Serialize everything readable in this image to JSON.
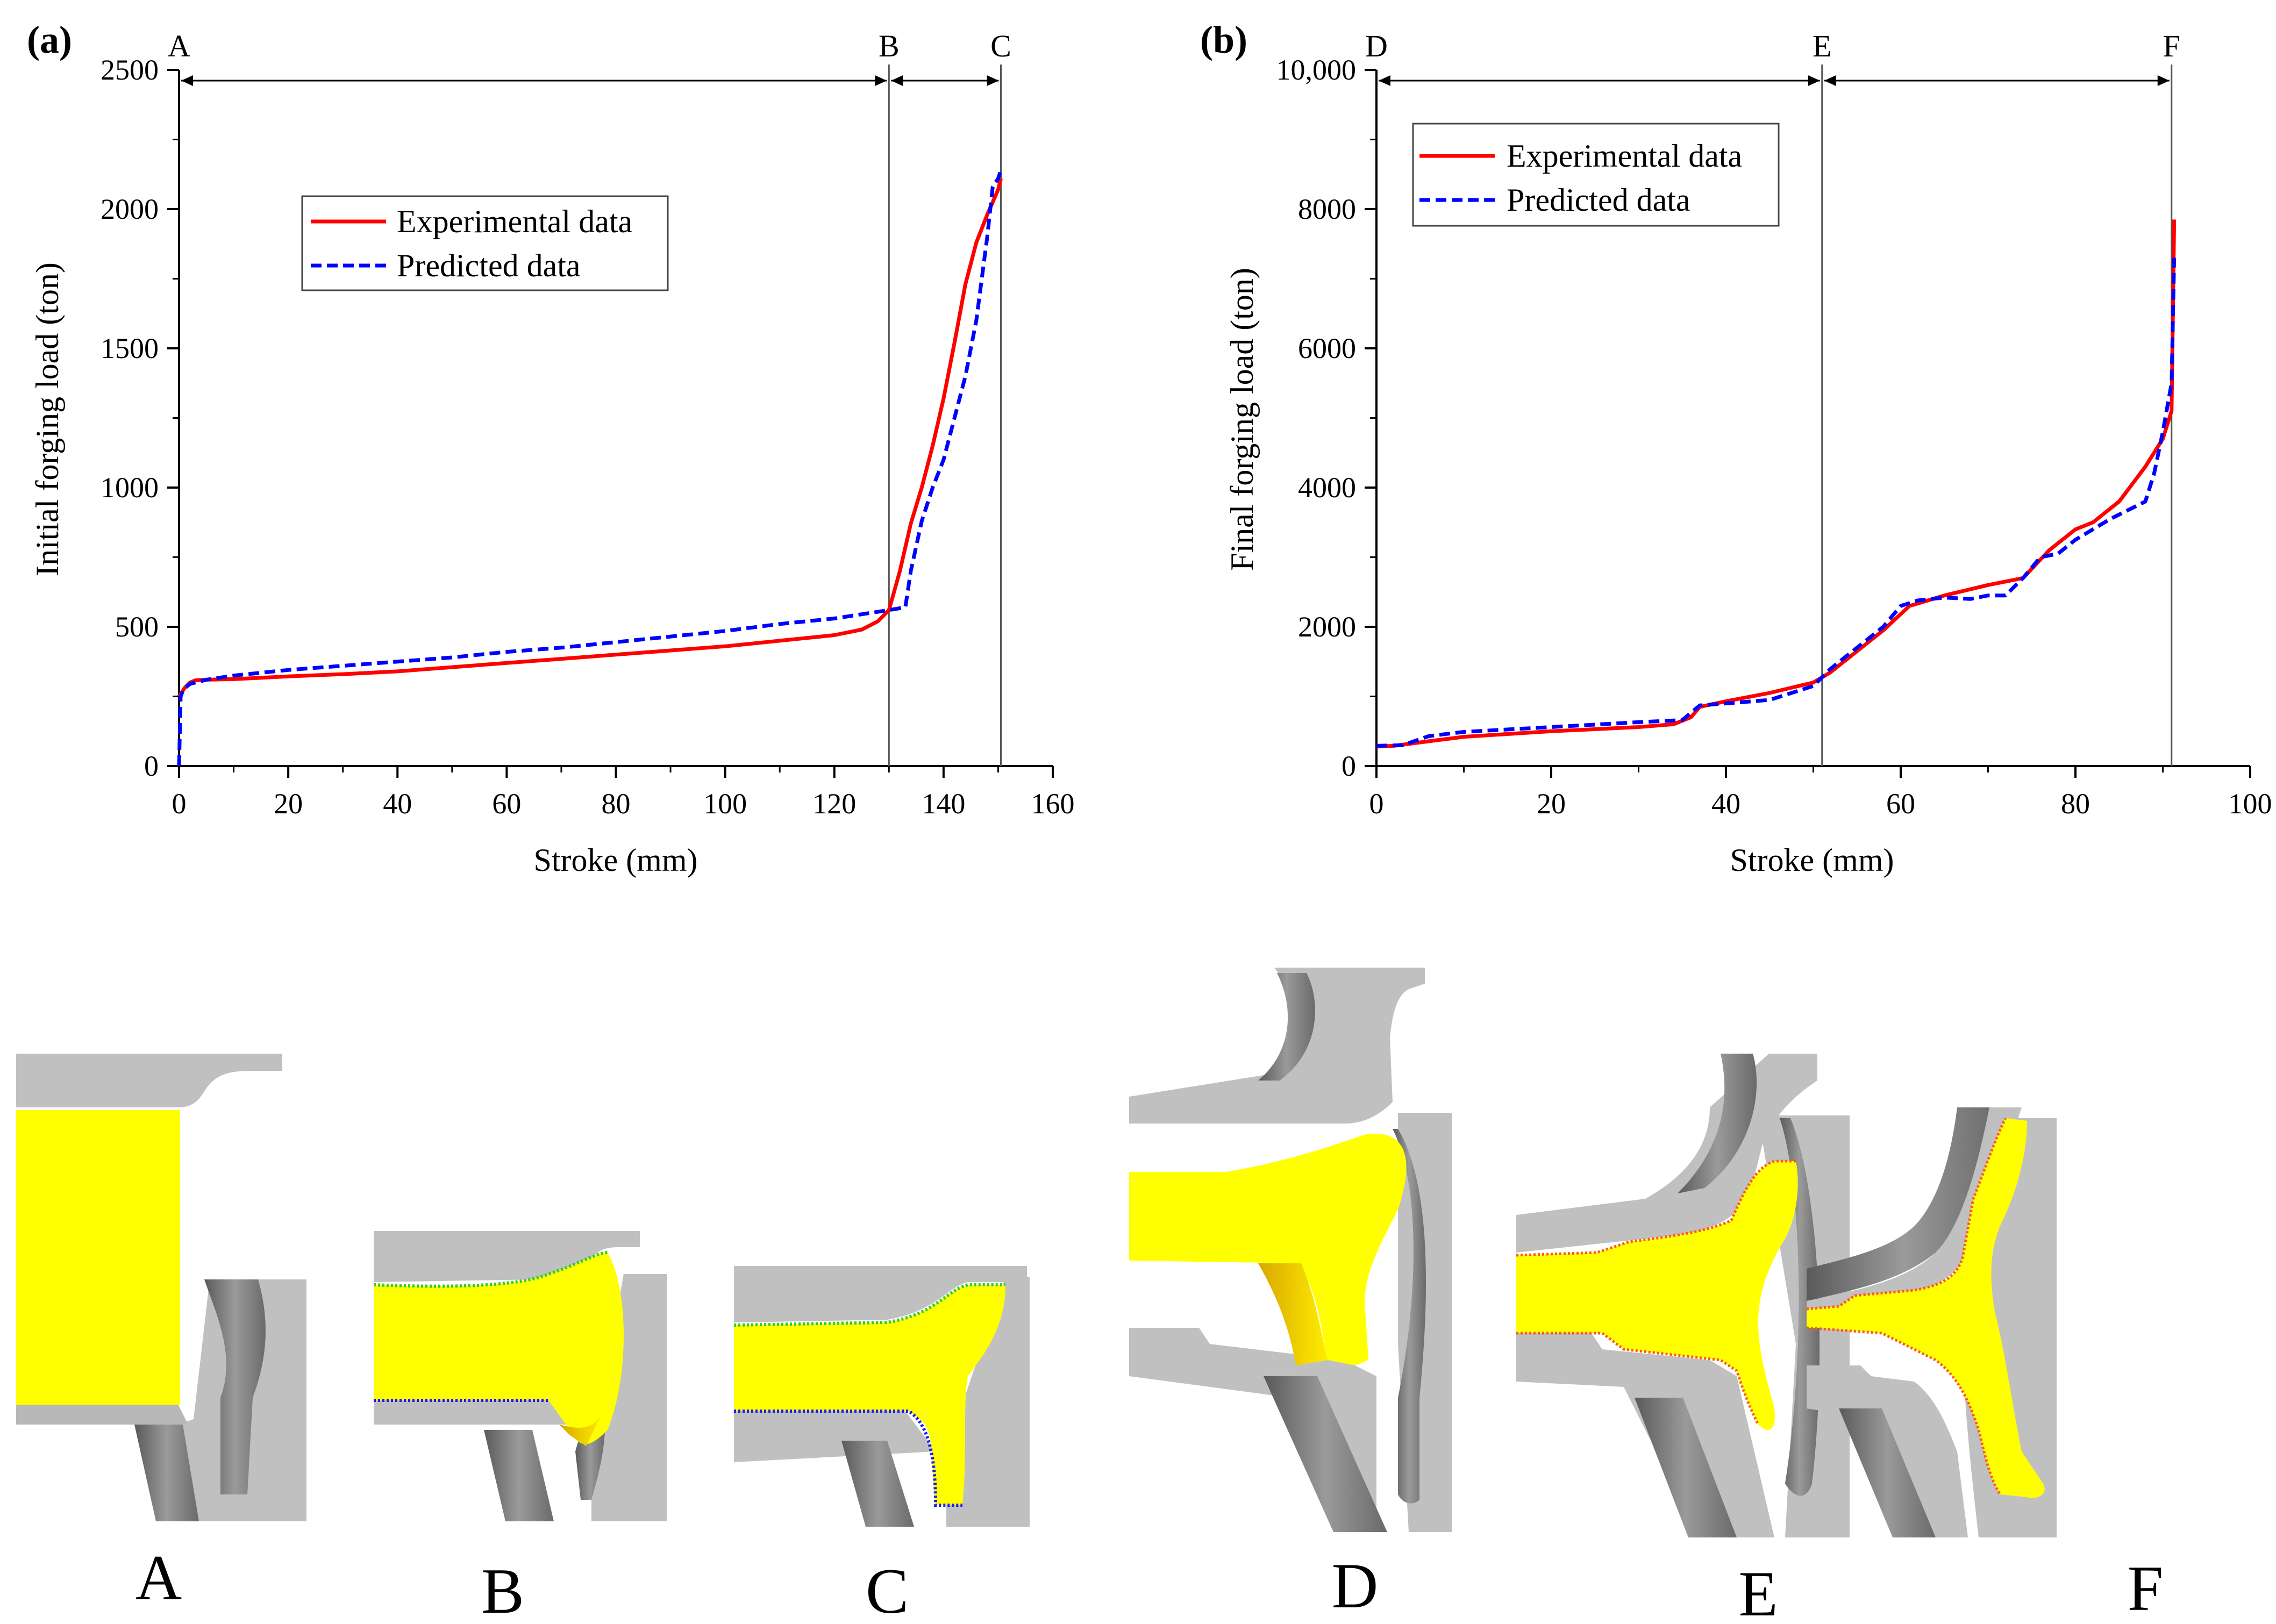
{
  "chart_data": [
    {
      "type": "line",
      "panel_label": "(a)",
      "xlabel": "Stroke (mm)",
      "ylabel": "Initial forging load (ton)",
      "xlim": [
        0,
        160
      ],
      "ylim": [
        0,
        2500
      ],
      "xticks": [
        0,
        20,
        40,
        60,
        80,
        100,
        120,
        140,
        160
      ],
      "yticks": [
        0,
        500,
        1000,
        1500,
        2000,
        2500
      ],
      "xtick_labels": [
        "0",
        "20",
        "40",
        "60",
        "80",
        "100",
        "120",
        "140",
        "160"
      ],
      "ytick_labels": [
        "0",
        "500",
        "1000",
        "1500",
        "2000",
        "2500"
      ],
      "stages": [
        {
          "label": "A",
          "x": 0
        },
        {
          "label": "B",
          "x": 130
        },
        {
          "label": "C",
          "x": 150.5
        }
      ],
      "legend": {
        "position": "upper-center-left",
        "items": [
          "Experimental data",
          "Predicted data"
        ]
      },
      "series": [
        {
          "name": "Experimental data",
          "color": "#ff0000",
          "style": "solid",
          "x": [
            0,
            1,
            2,
            3,
            5,
            10,
            20,
            30,
            40,
            50,
            60,
            70,
            80,
            90,
            100,
            110,
            120,
            125,
            128,
            130,
            132,
            134,
            136,
            138,
            140,
            142,
            144,
            146,
            148,
            150,
            150.5
          ],
          "y": [
            250,
            280,
            300,
            308,
            310,
            312,
            322,
            330,
            340,
            355,
            370,
            385,
            400,
            415,
            430,
            450,
            470,
            490,
            520,
            560,
            700,
            870,
            1000,
            1150,
            1320,
            1520,
            1730,
            1880,
            1980,
            2070,
            2110
          ]
        },
        {
          "name": "Predicted data",
          "color": "#0000ff",
          "style": "dashed",
          "x": [
            0,
            0.3,
            0.8,
            2,
            5,
            10,
            20,
            30,
            40,
            50,
            60,
            70,
            80,
            90,
            100,
            110,
            120,
            125,
            130,
            133,
            134,
            136,
            138,
            140,
            142,
            144,
            146,
            148,
            149,
            150,
            150.5
          ],
          "y": [
            0,
            250,
            275,
            295,
            310,
            325,
            345,
            360,
            375,
            390,
            410,
            425,
            445,
            465,
            485,
            510,
            530,
            545,
            560,
            570,
            700,
            880,
            1000,
            1100,
            1250,
            1400,
            1600,
            1900,
            2080,
            2110,
            2140
          ]
        }
      ]
    },
    {
      "type": "line",
      "panel_label": "(b)",
      "xlabel": "Stroke (mm)",
      "ylabel": "Final forging load (ton)",
      "xlim": [
        0,
        100
      ],
      "ylim": [
        0,
        10000
      ],
      "xticks": [
        0,
        20,
        40,
        60,
        80,
        100
      ],
      "yticks": [
        0,
        2000,
        4000,
        6000,
        8000,
        10000
      ],
      "xtick_labels": [
        "0",
        "20",
        "40",
        "60",
        "80",
        "100"
      ],
      "ytick_labels": [
        "0",
        "2000",
        "4000",
        "6000",
        "8000",
        "10,000"
      ],
      "stages": [
        {
          "label": "D",
          "x": 0
        },
        {
          "label": "E",
          "x": 51
        },
        {
          "label": "F",
          "x": 91
        }
      ],
      "legend": {
        "position": "top-left",
        "items": [
          "Experimental data",
          "Predicted data"
        ]
      },
      "series": [
        {
          "name": "Experimental data",
          "color": "#ff0000",
          "style": "solid",
          "x": [
            0,
            2,
            5,
            10,
            20,
            30,
            34,
            36,
            37,
            40,
            45,
            50,
            52,
            55,
            58,
            61,
            65,
            70,
            74,
            77,
            80,
            82,
            85,
            88,
            90,
            91,
            91.3
          ],
          "y": [
            280,
            290,
            340,
            420,
            500,
            560,
            600,
            700,
            850,
            930,
            1050,
            1200,
            1350,
            1650,
            1950,
            2300,
            2450,
            2600,
            2700,
            3100,
            3400,
            3500,
            3800,
            4300,
            4700,
            5100,
            7850
          ]
        },
        {
          "name": "Predicted data",
          "color": "#0000ff",
          "style": "dashed",
          "x": [
            0,
            3,
            6,
            10,
            20,
            30,
            35,
            37,
            40,
            45,
            50,
            52,
            55,
            58,
            60,
            62,
            65,
            68,
            70,
            72,
            74,
            76,
            78,
            80,
            84,
            88,
            89,
            90,
            91,
            91.3
          ],
          "y": [
            290,
            300,
            430,
            490,
            560,
            630,
            660,
            870,
            900,
            950,
            1150,
            1400,
            1700,
            2000,
            2300,
            2380,
            2420,
            2400,
            2450,
            2450,
            2700,
            3000,
            3050,
            3250,
            3550,
            3800,
            4200,
            4800,
            5500,
            7300
          ]
        }
      ]
    }
  ],
  "stage_images": [
    {
      "label": "A"
    },
    {
      "label": "B"
    },
    {
      "label": "C"
    },
    {
      "label": "D"
    },
    {
      "label": "E"
    },
    {
      "label": "F"
    }
  ],
  "colors": {
    "workpiece": "#ffff00",
    "die_light": "#c0c0c0",
    "die_dark": "#7a7a7a",
    "flash_edge_red": "#ff5a1a",
    "edge_green": "#33cc33"
  }
}
